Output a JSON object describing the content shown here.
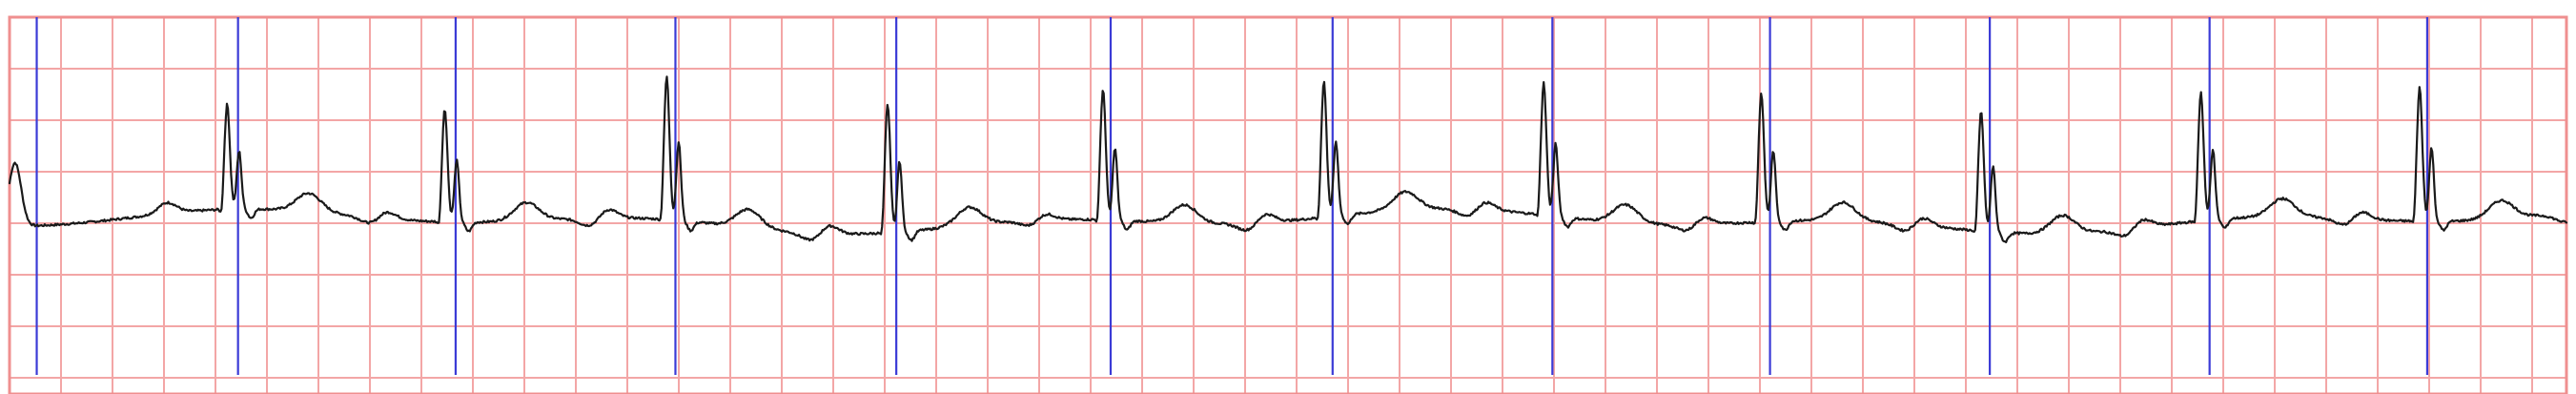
{
  "chart_data": {
    "type": "line",
    "title": "",
    "xlabel": "",
    "ylabel": "",
    "grid": true,
    "legend": "none",
    "x_range": [
      0,
      23.5
    ],
    "y_range": [
      -1.0,
      1.0
    ],
    "baseline": 0.0,
    "r_peaks": [
      {
        "t": 2.0,
        "amp": 0.58
      },
      {
        "t": 4.0,
        "amp": 0.62
      },
      {
        "t": 6.04,
        "amp": 0.79
      },
      {
        "t": 8.07,
        "amp": 0.71
      },
      {
        "t": 10.05,
        "amp": 0.72
      },
      {
        "t": 12.08,
        "amp": 0.75
      },
      {
        "t": 14.1,
        "amp": 0.73
      },
      {
        "t": 16.1,
        "amp": 0.71
      },
      {
        "t": 18.12,
        "amp": 0.66
      },
      {
        "t": 20.14,
        "amp": 0.71
      },
      {
        "t": 22.15,
        "amp": 0.74
      }
    ],
    "beat_markers_t": [
      0.25,
      2.1,
      4.1,
      6.12,
      8.15,
      10.12,
      12.16,
      14.18,
      16.18,
      18.2,
      20.22,
      22.22
    ],
    "colors": {
      "grid": "#f3a6a6",
      "border": "#ef8f8f",
      "markers": "#3b3bd6",
      "trace": "#1a1a1a"
    }
  }
}
